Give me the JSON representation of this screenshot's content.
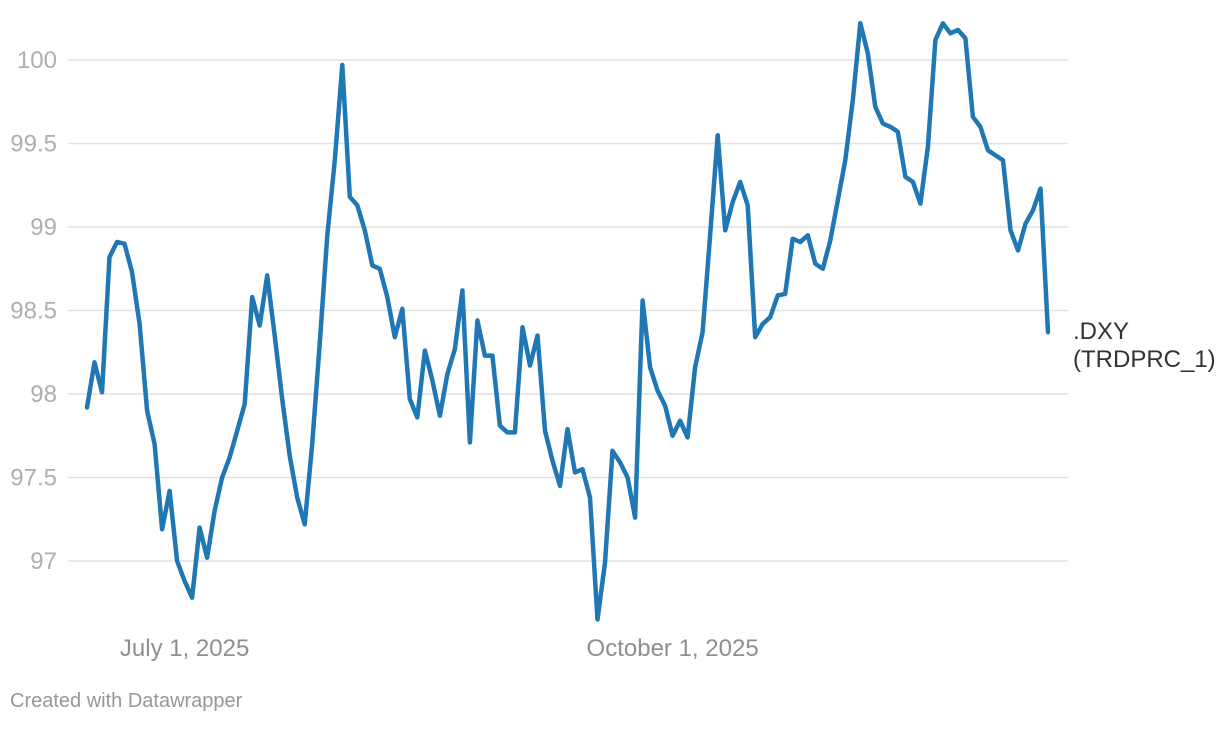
{
  "chart_data": {
    "type": "line",
    "title": "",
    "xlabel": "",
    "ylabel": "",
    "grid": true,
    "legend_position": "direct-label-right",
    "ylim": [
      96.55,
      100.36
    ],
    "y_ticks": [
      100,
      99.5,
      99,
      98.5,
      98,
      97.5,
      97
    ],
    "y_tick_labels": [
      "100",
      "99.5",
      "99",
      "98.5",
      "98",
      "97.5",
      "97"
    ],
    "x_ticks": [
      {
        "date": "2025-07-01",
        "label": "July 1, 2025"
      },
      {
        "date": "2025-10-01",
        "label": "October 1, 2025"
      }
    ],
    "series": [
      {
        "name": ".DXY (TRDPRC_1)",
        "label_line1": ".DXY",
        "label_line2": "(TRDPRC_1)",
        "dates": [
          "2025-06-12",
          "2025-06-13",
          "2025-06-16",
          "2025-06-17",
          "2025-06-18",
          "2025-06-19",
          "2025-06-20",
          "2025-06-23",
          "2025-06-24",
          "2025-06-25",
          "2025-06-26",
          "2025-06-27",
          "2025-06-30",
          "2025-07-01",
          "2025-07-02",
          "2025-07-03",
          "2025-07-07",
          "2025-07-08",
          "2025-07-09",
          "2025-07-10",
          "2025-07-11",
          "2025-07-14",
          "2025-07-15",
          "2025-07-16",
          "2025-07-17",
          "2025-07-18",
          "2025-07-21",
          "2025-07-22",
          "2025-07-23",
          "2025-07-24",
          "2025-07-25",
          "2025-07-28",
          "2025-07-29",
          "2025-07-30",
          "2025-07-31",
          "2025-08-01",
          "2025-08-04",
          "2025-08-05",
          "2025-08-06",
          "2025-08-07",
          "2025-08-08",
          "2025-08-11",
          "2025-08-12",
          "2025-08-13",
          "2025-08-14",
          "2025-08-15",
          "2025-08-18",
          "2025-08-19",
          "2025-08-20",
          "2025-08-21",
          "2025-08-22",
          "2025-08-25",
          "2025-08-26",
          "2025-08-27",
          "2025-08-28",
          "2025-08-29",
          "2025-09-01",
          "2025-09-02",
          "2025-09-03",
          "2025-09-04",
          "2025-09-05",
          "2025-09-08",
          "2025-09-09",
          "2025-09-10",
          "2025-09-11",
          "2025-09-12",
          "2025-09-15",
          "2025-09-16",
          "2025-09-17",
          "2025-09-18",
          "2025-09-19",
          "2025-09-22",
          "2025-09-23",
          "2025-09-24",
          "2025-09-25",
          "2025-09-26",
          "2025-09-29",
          "2025-09-30",
          "2025-10-01",
          "2025-10-02",
          "2025-10-03",
          "2025-10-06",
          "2025-10-07",
          "2025-10-08",
          "2025-10-09",
          "2025-10-10",
          "2025-10-13",
          "2025-10-14",
          "2025-10-15",
          "2025-10-16",
          "2025-10-17",
          "2025-10-20",
          "2025-10-21",
          "2025-10-22",
          "2025-10-23",
          "2025-10-24",
          "2025-10-27",
          "2025-10-28",
          "2025-10-29",
          "2025-10-30",
          "2025-10-31",
          "2025-11-03",
          "2025-11-04",
          "2025-11-05",
          "2025-11-06",
          "2025-11-07",
          "2025-11-10",
          "2025-11-11",
          "2025-11-12",
          "2025-11-13",
          "2025-11-14",
          "2025-11-17",
          "2025-11-18",
          "2025-11-19",
          "2025-11-20",
          "2025-11-21",
          "2025-11-24",
          "2025-11-25",
          "2025-11-26",
          "2025-11-28",
          "2025-12-01",
          "2025-12-02",
          "2025-12-03",
          "2025-12-04",
          "2025-12-05",
          "2025-12-08",
          "2025-12-09",
          "2025-12-10",
          "2025-12-11"
        ],
        "values": [
          97.92,
          98.19,
          98.01,
          98.82,
          98.91,
          98.9,
          98.73,
          98.42,
          97.9,
          97.7,
          97.19,
          97.42,
          97.0,
          96.88,
          96.78,
          97.2,
          97.02,
          97.3,
          97.5,
          97.62,
          97.78,
          97.94,
          98.58,
          98.41,
          98.71,
          98.35,
          97.97,
          97.63,
          97.38,
          97.22,
          97.7,
          98.3,
          98.95,
          99.4,
          99.97,
          99.18,
          99.13,
          98.98,
          98.77,
          98.75,
          98.58,
          98.34,
          98.51,
          97.97,
          97.86,
          98.26,
          98.08,
          97.87,
          98.12,
          98.27,
          98.62,
          97.71,
          98.44,
          98.23,
          98.23,
          97.81,
          97.77,
          97.77,
          98.4,
          98.17,
          98.35,
          97.78,
          97.6,
          97.45,
          97.79,
          97.53,
          97.55,
          97.38,
          96.65,
          96.99,
          97.66,
          97.59,
          97.5,
          97.26,
          98.56,
          98.16,
          98.02,
          97.93,
          97.75,
          97.84,
          97.74,
          98.16,
          98.37,
          98.95,
          99.55,
          98.98,
          99.15,
          99.27,
          99.13,
          98.34,
          98.42,
          98.46,
          98.59,
          98.6,
          98.93,
          98.91,
          98.95,
          98.78,
          98.75,
          98.92,
          99.16,
          99.4,
          99.76,
          100.22,
          100.04,
          99.72,
          99.62,
          99.6,
          99.57,
          99.3,
          99.27,
          99.14,
          99.48,
          100.12,
          100.22,
          100.16,
          100.18,
          100.13,
          99.66,
          99.6,
          99.46,
          99.43,
          99.4,
          98.98,
          98.86,
          99.02,
          99.1,
          99.23,
          98.37
        ]
      }
    ]
  },
  "style": {
    "line_color": "#1f77b4",
    "grid_color": "#e1e1e1",
    "y_tick_color": "#aeaeae",
    "x_tick_color": "#8f8f8f",
    "series_label_color": "#333333",
    "credit_color": "#979797",
    "background": "#ffffff"
  },
  "footer": {
    "credit": "Created with Datawrapper"
  }
}
